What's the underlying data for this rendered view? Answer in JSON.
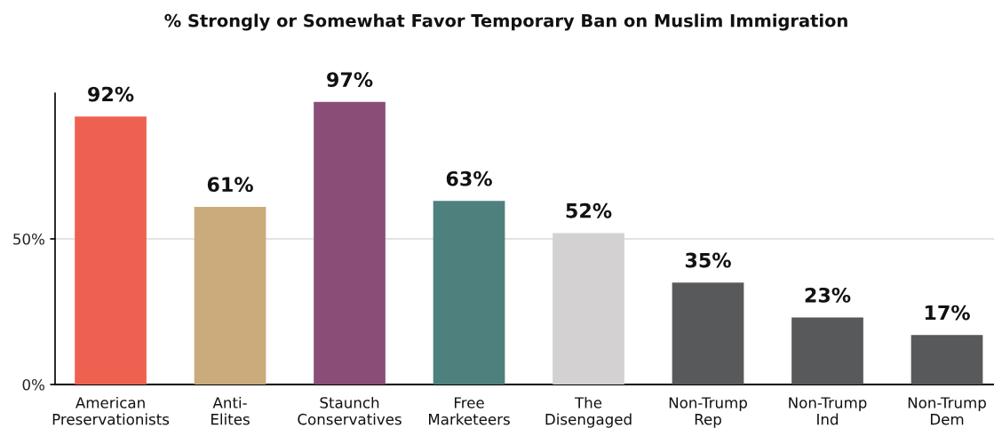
{
  "chart_data": {
    "type": "bar",
    "title": "% Strongly or Somewhat Favor Temporary Ban on Muslim Immigration",
    "categories": [
      "American\nPreservationists",
      "Anti-\nElites",
      "Staunch\nConservatives",
      "Free\nMarketeers",
      "The\nDisengaged",
      "Non-Trump\nRep",
      "Non-Trump\nInd",
      "Non-Trump\nDem"
    ],
    "values": [
      92,
      61,
      97,
      63,
      52,
      35,
      23,
      17
    ],
    "colors": [
      "#ee6150",
      "#cbab7b",
      "#8a4d78",
      "#4e807d",
      "#d3d1d2",
      "#58595b",
      "#58595b",
      "#58595b"
    ],
    "value_labels": [
      "92%",
      "61%",
      "97%",
      "63%",
      "52%",
      "35%",
      "23%",
      "17%"
    ],
    "ylim": [
      0,
      100
    ],
    "yticks": [
      {
        "value": 0,
        "label": "0%"
      },
      {
        "value": 50,
        "label": "50%"
      }
    ],
    "grid": "y"
  }
}
